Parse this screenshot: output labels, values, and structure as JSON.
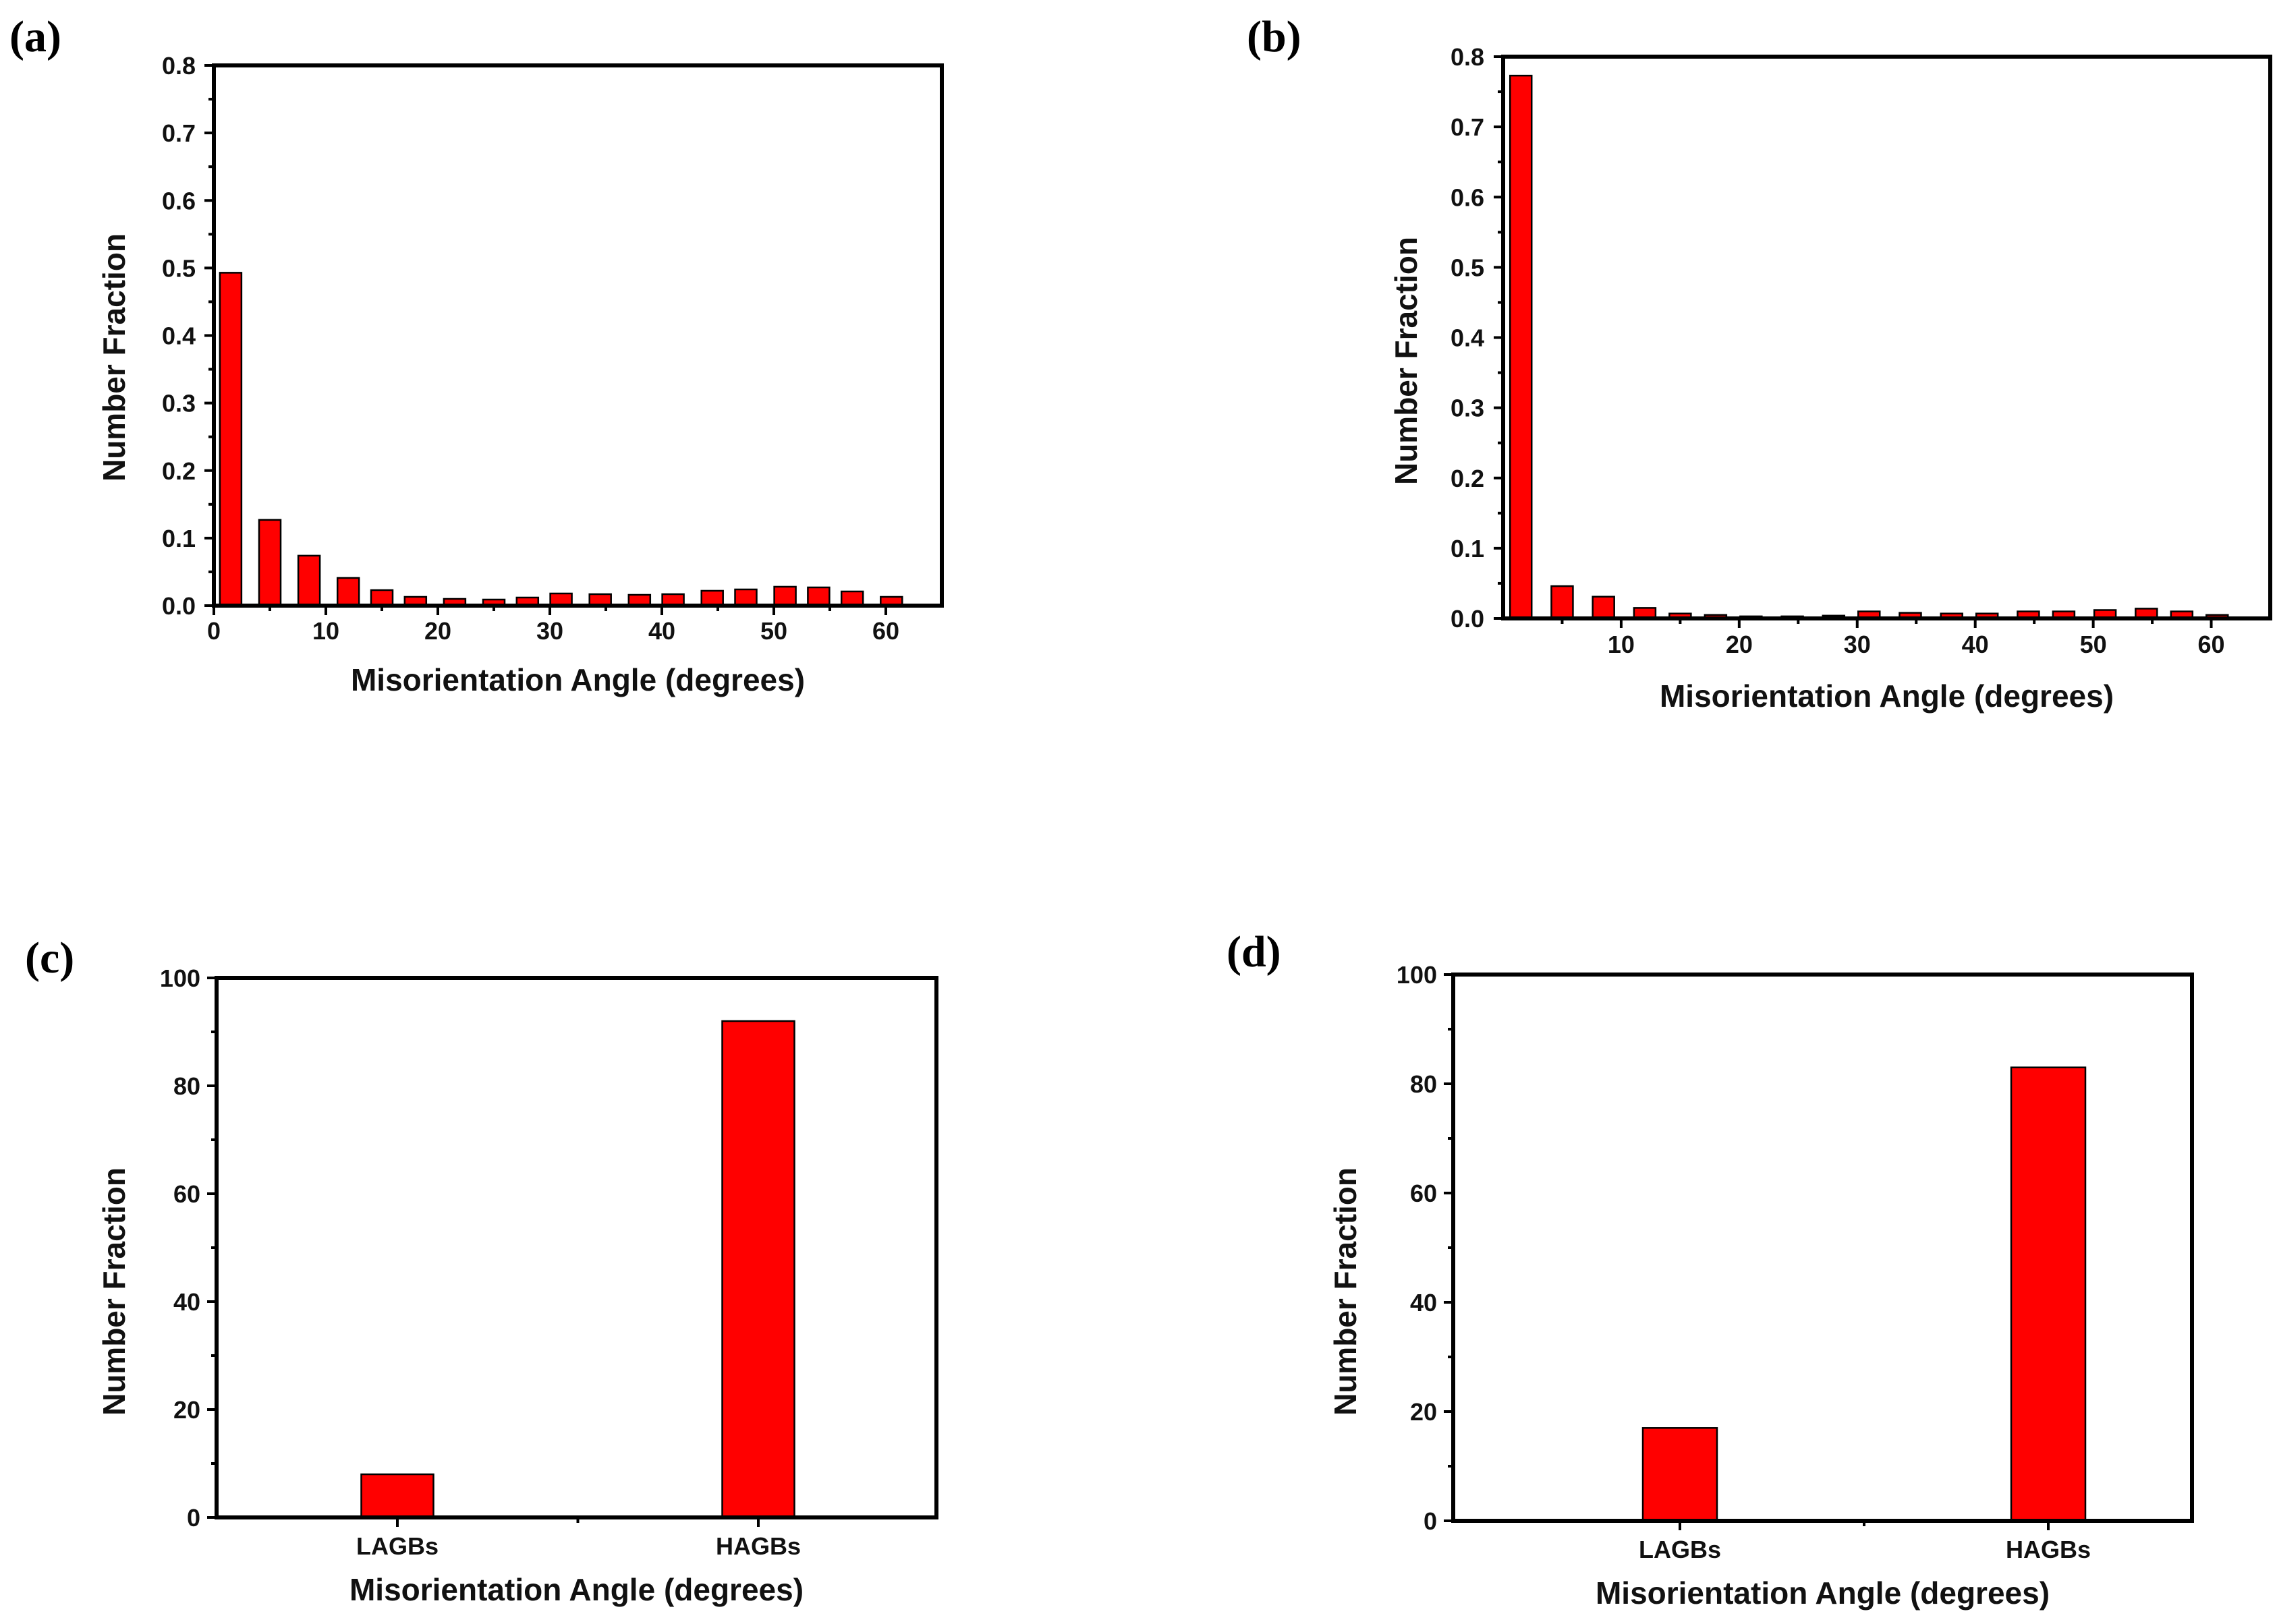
{
  "chart_data": [
    {
      "type": "bar",
      "panel_label": "(a)",
      "xlabel": "Misorientation Angle (degrees)",
      "ylabel": "Number Fraction",
      "xlim": [
        0,
        65
      ],
      "ylim": [
        0,
        0.8
      ],
      "x": [
        1.5,
        5,
        8.5,
        12,
        15,
        18,
        21.5,
        25,
        28,
        31,
        34.5,
        38,
        41,
        44.5,
        47.5,
        51,
        54,
        57,
        60.5
      ],
      "values": [
        0.493,
        0.127,
        0.074,
        0.041,
        0.023,
        0.013,
        0.01,
        0.009,
        0.012,
        0.018,
        0.017,
        0.016,
        0.017,
        0.022,
        0.024,
        0.028,
        0.027,
        0.021,
        0.013
      ],
      "xticks": [
        "0",
        "10",
        "20",
        "30",
        "40",
        "50",
        "60"
      ],
      "yticks": [
        "0.0",
        "0.1",
        "0.2",
        "0.3",
        "0.4",
        "0.5",
        "0.6",
        "0.7",
        "0.8"
      ]
    },
    {
      "type": "bar",
      "panel_label": "(b)",
      "xlabel": "Misorientation Angle (degrees)",
      "ylabel": "Number Fraction",
      "xlim": [
        0,
        65
      ],
      "ylim": [
        0,
        0.8
      ],
      "x": [
        1.5,
        5,
        8.5,
        12,
        15,
        18,
        21,
        24.5,
        28,
        31,
        34.5,
        38,
        41,
        44.5,
        47.5,
        51,
        54.5,
        57.5,
        60.5
      ],
      "values": [
        0.773,
        0.046,
        0.031,
        0.015,
        0.007,
        0.005,
        0.003,
        0.003,
        0.004,
        0.01,
        0.008,
        0.007,
        0.007,
        0.01,
        0.01,
        0.012,
        0.014,
        0.01,
        0.005
      ],
      "xticks": [
        "10",
        "20",
        "30",
        "40",
        "50",
        "60"
      ],
      "yticks": [
        "0.0",
        "0.1",
        "0.2",
        "0.3",
        "0.4",
        "0.5",
        "0.6",
        "0.7",
        "0.8"
      ]
    },
    {
      "type": "bar",
      "panel_label": "(c)",
      "xlabel": "Misorientation Angle (degrees)",
      "ylabel": "Number Fraction",
      "categories": [
        "LAGBs",
        "HAGBs"
      ],
      "values": [
        8,
        92
      ],
      "ylim": [
        0,
        100
      ],
      "yticks": [
        "0",
        "20",
        "40",
        "60",
        "80",
        "100"
      ]
    },
    {
      "type": "bar",
      "panel_label": "(d)",
      "xlabel": "Misorientation Angle (degrees)",
      "ylabel": "Number Fraction",
      "categories": [
        "LAGBs",
        "HAGBs"
      ],
      "values": [
        17,
        83
      ],
      "ylim": [
        0,
        100
      ],
      "yticks": [
        "0",
        "20",
        "40",
        "60",
        "80",
        "100"
      ]
    }
  ]
}
